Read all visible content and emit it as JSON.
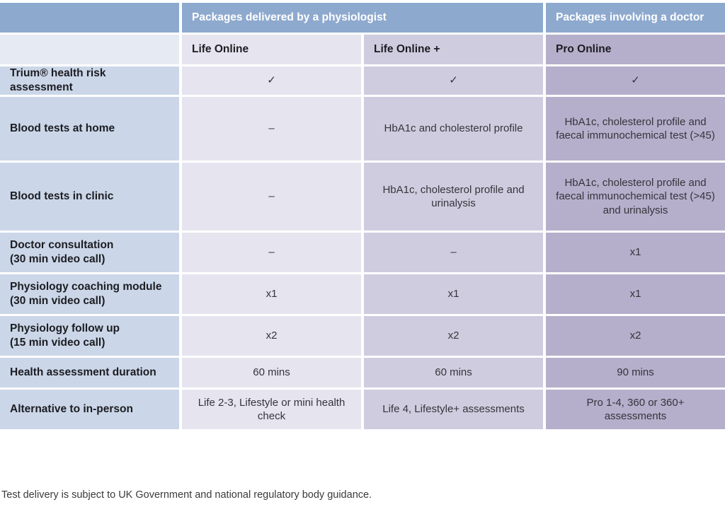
{
  "chart_data": {
    "type": "table",
    "group_headers": [
      "Packages delivered by a physiologist",
      "Packages involving a doctor"
    ],
    "columns": [
      "Life Online",
      "Life Online +",
      "Pro Online"
    ],
    "rows": [
      {
        "label": "Trium® health risk assessment",
        "values": [
          "✓",
          "✓",
          "✓"
        ]
      },
      {
        "label": "Blood tests at home",
        "values": [
          "–",
          "HbA1c and cholesterol profile",
          "HbA1c, cholesterol profile and faecal immunochemical test (>45)"
        ]
      },
      {
        "label": "Blood tests in clinic",
        "values": [
          "–",
          "HbA1c, cholesterol profile and urinalysis",
          "HbA1c, cholesterol profile and faecal immunochemical test (>45) and urinalysis"
        ]
      },
      {
        "label": "Doctor consultation",
        "sublabel": "(30 min video call)",
        "values": [
          "–",
          "–",
          "x1"
        ]
      },
      {
        "label": "Physiology coaching module",
        "sublabel": "(30 min video call)",
        "values": [
          "x1",
          "x1",
          "x1"
        ]
      },
      {
        "label": "Physiology follow up",
        "sublabel": "(15 min video call)",
        "values": [
          "x2",
          "x2",
          "x2"
        ]
      },
      {
        "label": "Health assessment duration",
        "values": [
          "60 mins",
          "60 mins",
          "90 mins"
        ]
      },
      {
        "label": "Alternative to in-person",
        "values": [
          "Life 2-3, Lifestyle or mini health check",
          "Life 4, Lifestyle+ assessments",
          "Pro 1-4, 360 or 360+ assessments"
        ]
      }
    ],
    "footnote": "Test delivery is subject to UK Government and national regulatory body guidance."
  },
  "colors": {
    "header_blue": "#8EA9CE",
    "header_text": "#FFFFFF",
    "row_label_bg": "#CBD7E8",
    "corner_light": "#E5EAF3",
    "col_life_online": "#E6E4EE",
    "col_life_online_plus": "#D0CCDF",
    "col_pro_online": "#B5AFCB",
    "text_dark": "#1C1C22",
    "value_text": "#35343C"
  }
}
